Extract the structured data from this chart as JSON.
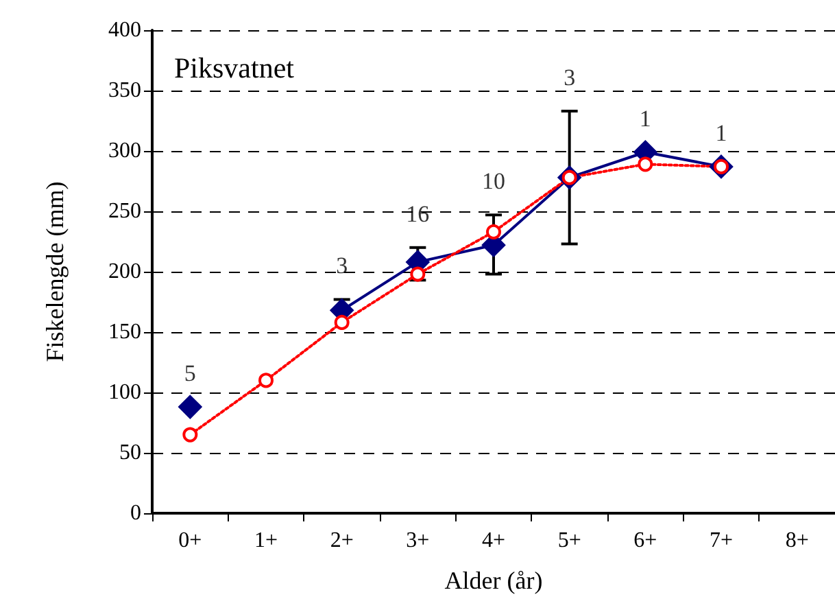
{
  "chart_data": {
    "type": "line",
    "title": "Piksvatnet",
    "xlabel": "Alder (år)",
    "ylabel": "Fiskelengde (mm)",
    "categories": [
      "0+",
      "1+",
      "2+",
      "3+",
      "4+",
      "5+",
      "6+",
      "7+",
      "8+"
    ],
    "series": [
      {
        "color": "#000080",
        "marker": "diamond",
        "line_style": "solid",
        "values": [
          88,
          null,
          168,
          208,
          222,
          278,
          299,
          287,
          null
        ],
        "errors": [
          null,
          null,
          [
            168,
            177
          ],
          [
            193,
            220
          ],
          [
            198,
            247
          ],
          [
            223,
            333
          ],
          null,
          null,
          null
        ]
      },
      {
        "color": "#ff0000",
        "marker": "circle",
        "line_style": "dotted",
        "values": [
          65,
          110,
          158,
          198,
          233,
          278,
          289,
          287,
          null
        ]
      }
    ],
    "annotations": [
      "5",
      "3",
      "16",
      "10",
      "3",
      "1",
      "1"
    ],
    "ylim": [
      0,
      400
    ],
    "yticks": [
      0,
      50,
      100,
      150,
      200,
      250,
      300,
      350,
      400
    ],
    "grid": "y"
  }
}
